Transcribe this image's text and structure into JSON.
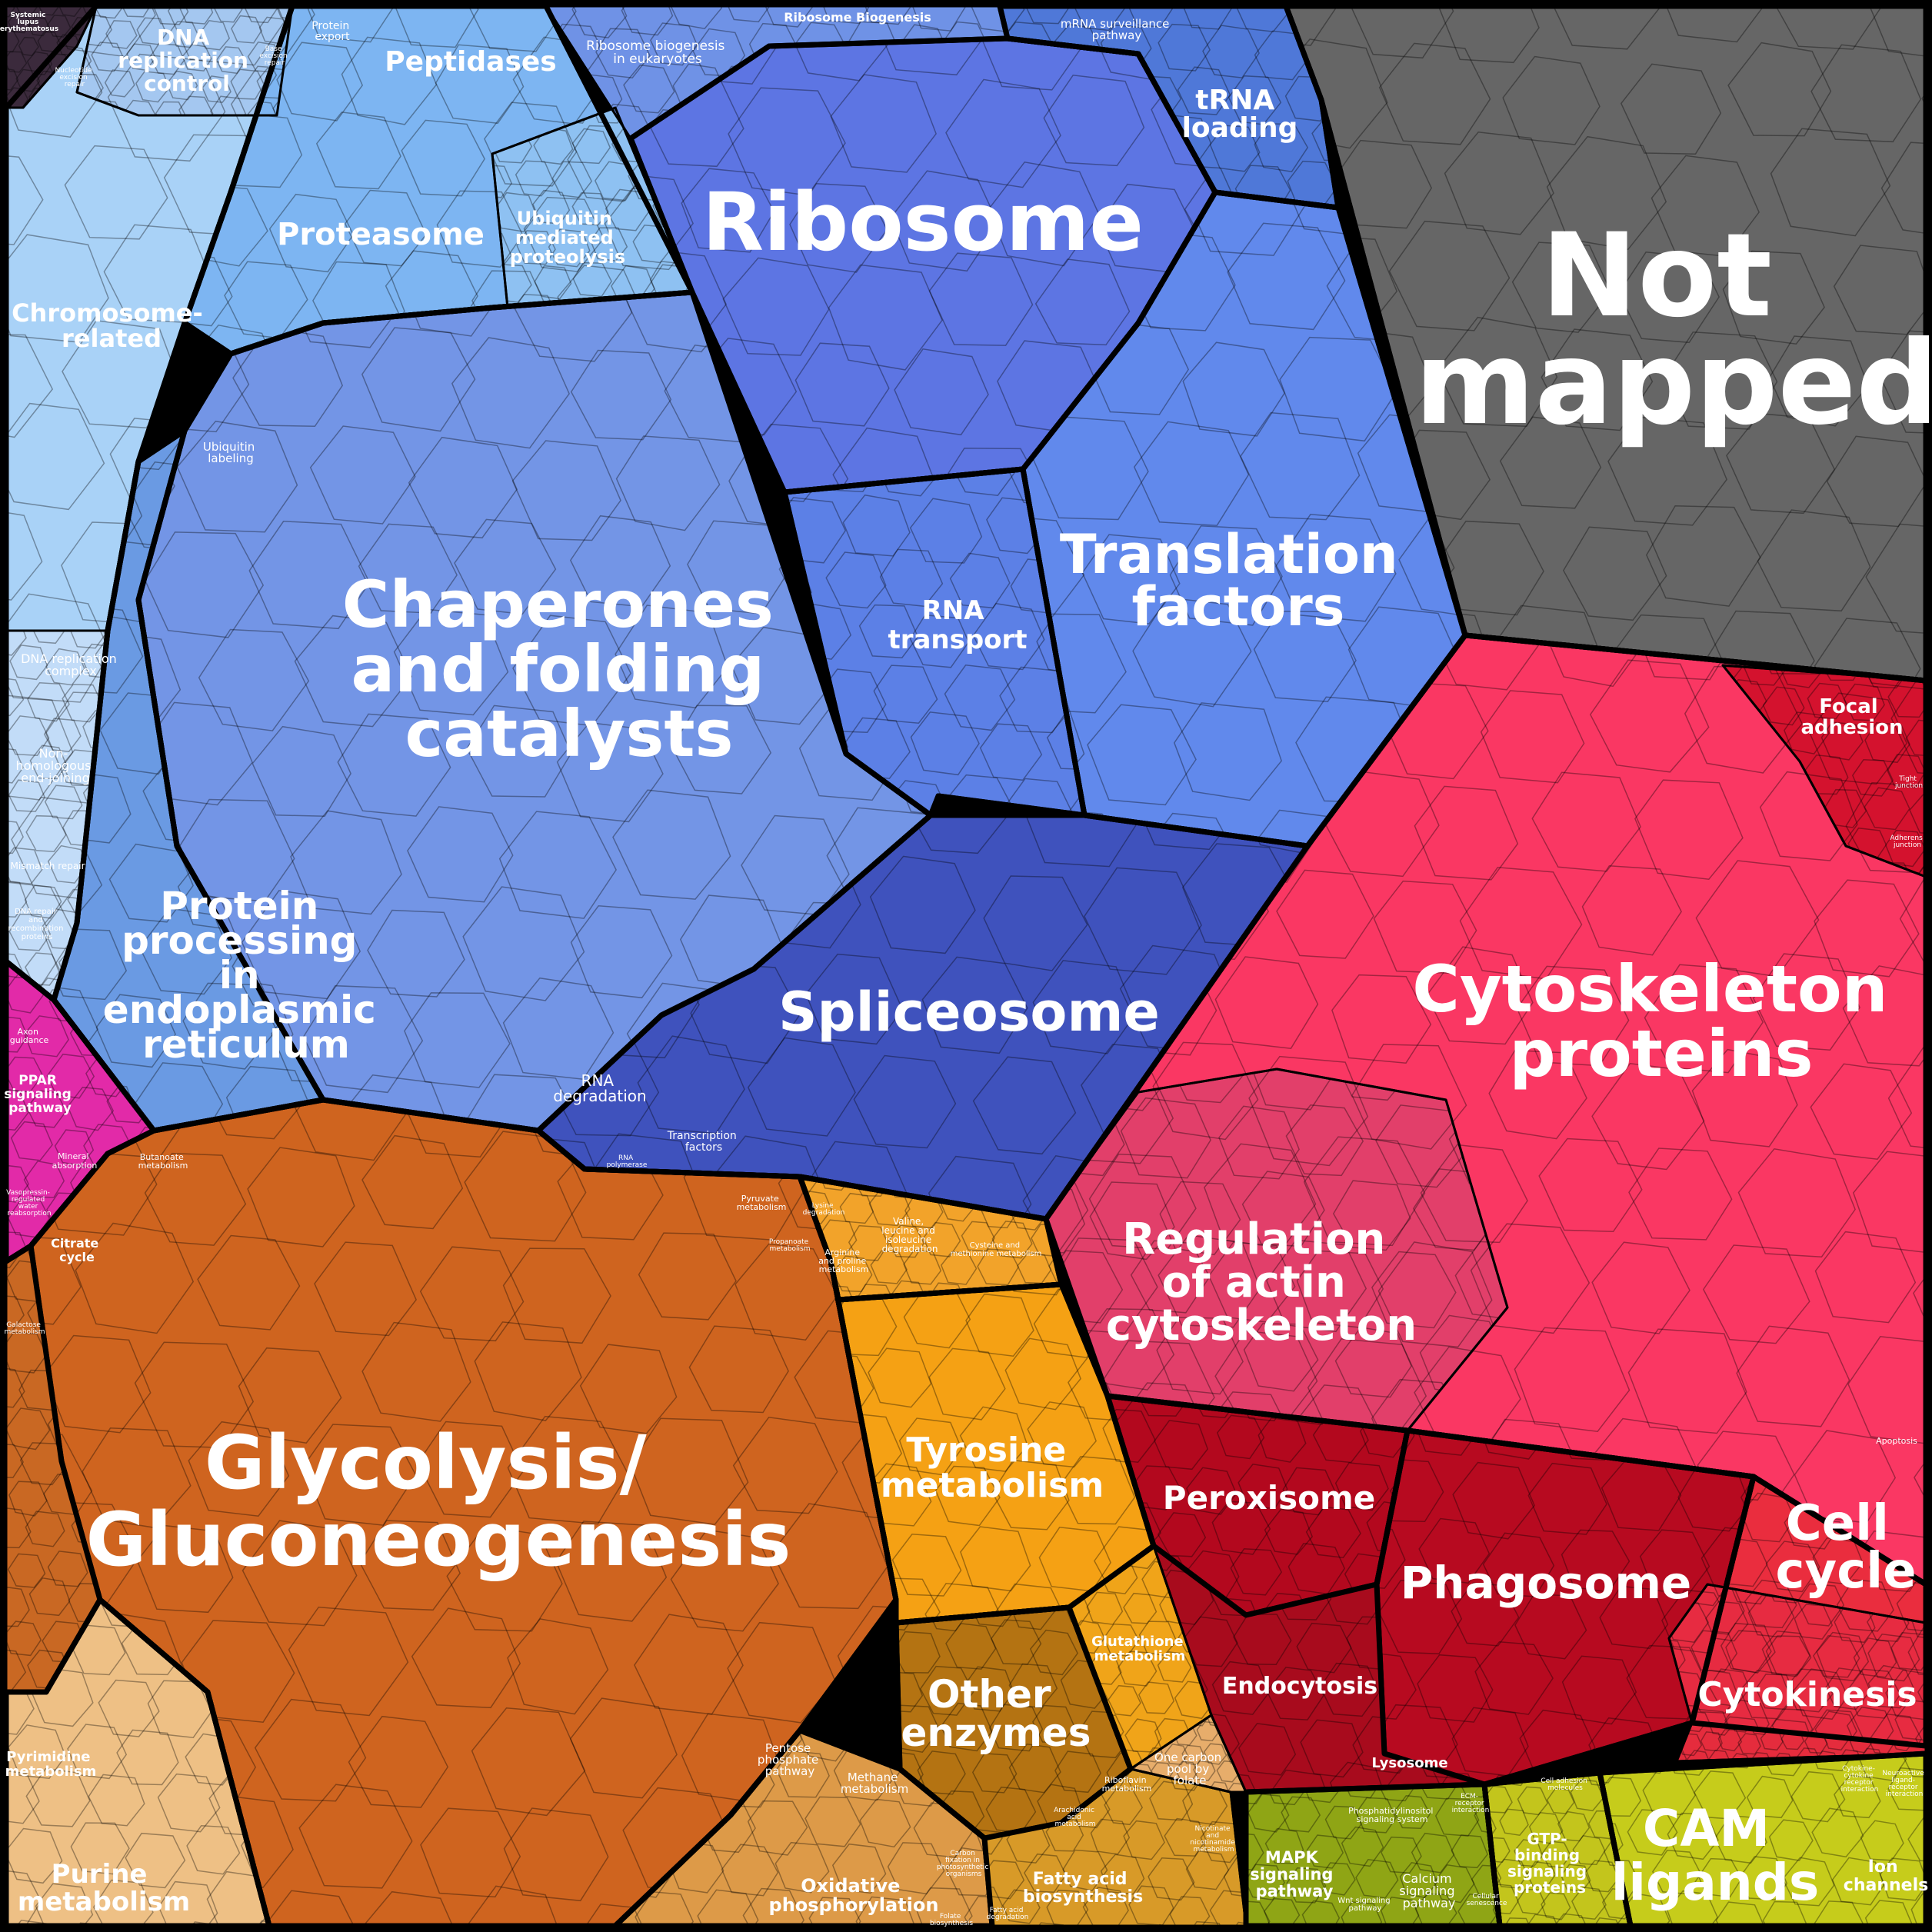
{
  "colors": {
    "background": "#000000",
    "not_mapped": "#666666",
    "blue_light": "#a9d2f7",
    "blue_mid": "#7ea6ee",
    "blue_main": "#5d79e6",
    "blue_dark": "#3f54bd",
    "red_main": "#f73563",
    "red_pink": "#e8406a",
    "red_dark": "#b80a1e",
    "red_bright": "#ea2d3e",
    "orange_main": "#d2651e",
    "orange_amber": "#f6a117",
    "orange_brown": "#b47412",
    "orange_light": "#e9a55a",
    "yellow_green": "#c3cc1e",
    "olive": "#8fa615",
    "magenta": "#e31fa5"
  },
  "labels": {
    "not_mapped": [
      "Not",
      "mapped"
    ],
    "ribosome": "Ribosome",
    "chaperones": [
      "Chaperones",
      "and folding",
      "catalysts"
    ],
    "translation_factors": [
      "Translation",
      "factors"
    ],
    "cytoskeleton_proteins": [
      "Cytoskeleton",
      "proteins"
    ],
    "glycolysis": [
      "Glycolysis/",
      "Gluconeogenesis"
    ],
    "spliceosome": "Spliceosome",
    "protein_processing": [
      "Protein",
      "processing",
      "in",
      "endoplasmic",
      "reticulum"
    ],
    "regulation_actin": [
      "Regulation",
      "of actin",
      "cytoskeleton"
    ],
    "tyrosine": [
      "Tyrosine",
      "metabolism"
    ],
    "phagosome": "Phagosome",
    "peroxisome": "Peroxisome",
    "cell_cycle": [
      "Cell",
      "cycle"
    ],
    "cytokinesis": "Cytokinesis",
    "other_enzymes": [
      "Other",
      "enzymes"
    ],
    "cam_ligands": [
      "CAM",
      "ligands"
    ],
    "proteasome": "Proteasome",
    "peptidases": "Peptidases",
    "dna_replication_control": [
      "DNA",
      "replication",
      "control"
    ],
    "chromosome_related": [
      "Chromosome-",
      "related"
    ],
    "trna_loading": [
      "tRNA",
      "loading"
    ],
    "rna_transport": [
      "RNA",
      "transport"
    ],
    "ubiquitin_mediated": [
      "Ubiquitin",
      "mediated",
      "proteolysis"
    ],
    "purine": [
      "Purine",
      "metabolism"
    ],
    "endocytosis": "Endocytosis",
    "oxidative_phos": [
      "Oxidative",
      "phosphorylation"
    ],
    "fatty_acid": [
      "Fatty acid",
      "biosynthesis"
    ],
    "mapk": [
      "MAPK",
      "signaling",
      "pathway"
    ],
    "gtp_binding": [
      "GTP-",
      "binding",
      "signaling",
      "proteins"
    ],
    "ion_channels": [
      "Ion",
      "channels"
    ],
    "focal_adhesion": [
      "Focal",
      "adhesion"
    ],
    "glutathione": [
      "Glutathione",
      "metabolism"
    ],
    "pyrimidine": [
      "Pyrimidine",
      "metabolism"
    ],
    "citrate": [
      "Citrate",
      "cycle"
    ],
    "ppar": [
      "PPAR",
      "signaling",
      "pathway"
    ],
    "lysosome": "Lysosome",
    "rna_degradation": [
      "RNA",
      "degradation"
    ],
    "transcription_factors": [
      "Transcription",
      "factors"
    ],
    "ribosome_biogenesis": "Ribosome Biogenesis",
    "ribosome_biogenesis_euk": [
      "Ribosome biogenesis",
      "in eukaryotes"
    ],
    "mrna_surveillance": [
      "mRNA surveillance",
      "pathway"
    ],
    "protein_export": [
      "Protein",
      "export"
    ],
    "ubiquitin_labeling": [
      "Ubiquitin",
      "labeling"
    ],
    "dna_replication_complex": [
      "DNA replication",
      "complex"
    ],
    "nhej": [
      "Non-",
      "homologous",
      "end-joining"
    ],
    "mismatch_repair": "Mismatch repair",
    "dna_repair_recomb": [
      "DNA repair",
      "and",
      "recombination",
      "proteins"
    ],
    "axon_guidance": [
      "Axon",
      "guidance"
    ],
    "mineral_absorption": [
      "Mineral",
      "absorption"
    ],
    "butanoate": [
      "Butanoate",
      "metabolism"
    ],
    "pyruvate": [
      "Pyruvate",
      "metabolism"
    ],
    "valine": [
      "Valine,",
      "leucine and",
      "isoleucine",
      "degradation"
    ],
    "arginine": [
      "Arginine",
      "and proline",
      "metabolism"
    ],
    "cysteine": [
      "Cysteine and",
      "methionine metabolism"
    ],
    "pentose": [
      "Pentose",
      "phosphate",
      "pathway"
    ],
    "methane": [
      "Methane",
      "metabolism"
    ],
    "one_carbon": [
      "One carbon",
      "pool by",
      "folate"
    ],
    "riboflavin": [
      "Riboflavin",
      "metabolism"
    ],
    "apoptosis": "Apoptosis",
    "systemic_lupus": [
      "Systemic",
      "lupus",
      "erythematosus"
    ],
    "nucleotide_excision": [
      "Nucleotide",
      "excision",
      "repair"
    ],
    "base_excision": [
      "Base",
      "excision",
      "repair"
    ],
    "rna_polymerase": [
      "RNA",
      "polymerase"
    ],
    "tight_junction": [
      "Tight",
      "junction"
    ],
    "adherens_junction": [
      "Adherens",
      "junction"
    ],
    "vasopressin": [
      "Vasopressin-",
      "regulated",
      "water",
      "reabsorption"
    ],
    "galactose": [
      "Galactose",
      "metabolism"
    ],
    "cysteine_degradation": [
      "Lysine",
      "degradation"
    ],
    "propanoate": [
      "Propanoate",
      "metabolism"
    ],
    "phosphatidylinositol": [
      "Phosphatidylinositol",
      "signaling system"
    ],
    "calcium_signaling": [
      "Calcium",
      "signaling",
      "pathway"
    ],
    "wnt_signaling": [
      "Wnt signaling",
      "pathway"
    ],
    "cytokine_receptor": [
      "Cytokine-",
      "cytokine",
      "receptor",
      "interaction"
    ],
    "neuroactive": [
      "Neuroactive",
      "ligand-",
      "receptor",
      "interaction"
    ],
    "cell_adhesion": [
      "Cell adhesion",
      "molecules"
    ],
    "ecm_receptor": [
      "ECM-",
      "receptor",
      "interaction"
    ],
    "cellular_senescence": [
      "Cellular",
      "senescence"
    ],
    "arachidonic": [
      "Arachidonic",
      "acid",
      "metabolism"
    ],
    "nicotinate": [
      "Nicotinate",
      "and",
      "nicotinamide",
      "metabolism"
    ],
    "carbon_fixation": [
      "Carbon",
      "fixation in",
      "photosynthetic",
      "organisms"
    ],
    "fatty_acid_degradation": [
      "Fatty acid",
      "degradation"
    ],
    "folate": [
      "Folate",
      "biosynthesis"
    ]
  }
}
